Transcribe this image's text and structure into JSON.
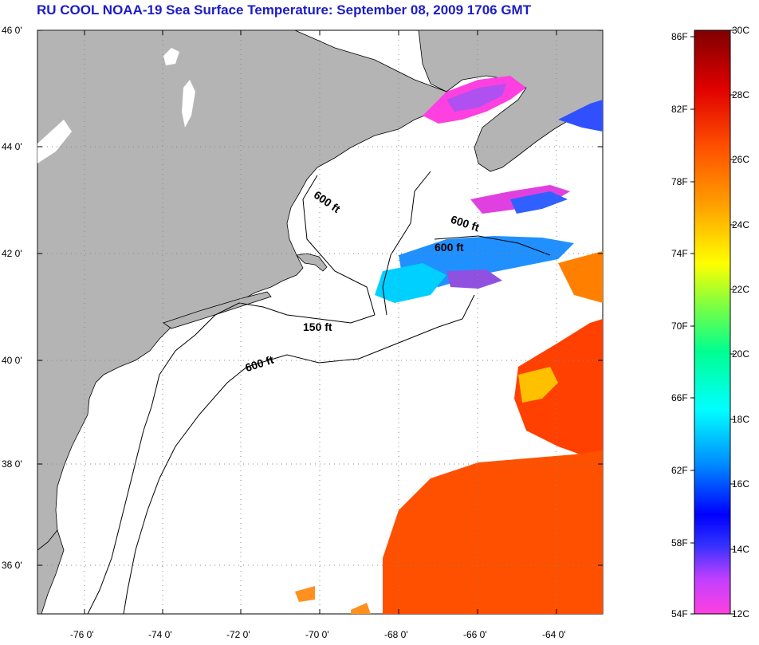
{
  "title": "RU COOL  NOAA-19  Sea Surface Temperature:  September 08, 2009 1706 GMT",
  "map": {
    "lat_labels": [
      "46 0'",
      "44 0'",
      "42 0'",
      "40 0'",
      "38 0'",
      "36 0'"
    ],
    "lon_labels": [
      "-76 0'",
      "-74 0'",
      "-72 0'",
      "-70 0'",
      "-68 0'",
      "-66 0'",
      "-64 0'"
    ],
    "contour_labels": [
      "600 ft",
      "600 ft",
      "600 ft",
      "150 ft",
      "600 ft"
    ],
    "colors": {
      "land": "#b4b4b4",
      "ocean_no_data": "#ffffff",
      "grid": "#888888"
    }
  },
  "colorbar": {
    "fahrenheit_labels": [
      "86F",
      "82F",
      "78F",
      "74F",
      "70F",
      "66F",
      "62F",
      "58F",
      "54F"
    ],
    "celsius_labels": [
      "30C",
      "28C",
      "26C",
      "24C",
      "22C",
      "20C",
      "18C",
      "16C",
      "14C",
      "12C"
    ],
    "range_c": [
      12,
      30
    ]
  }
}
